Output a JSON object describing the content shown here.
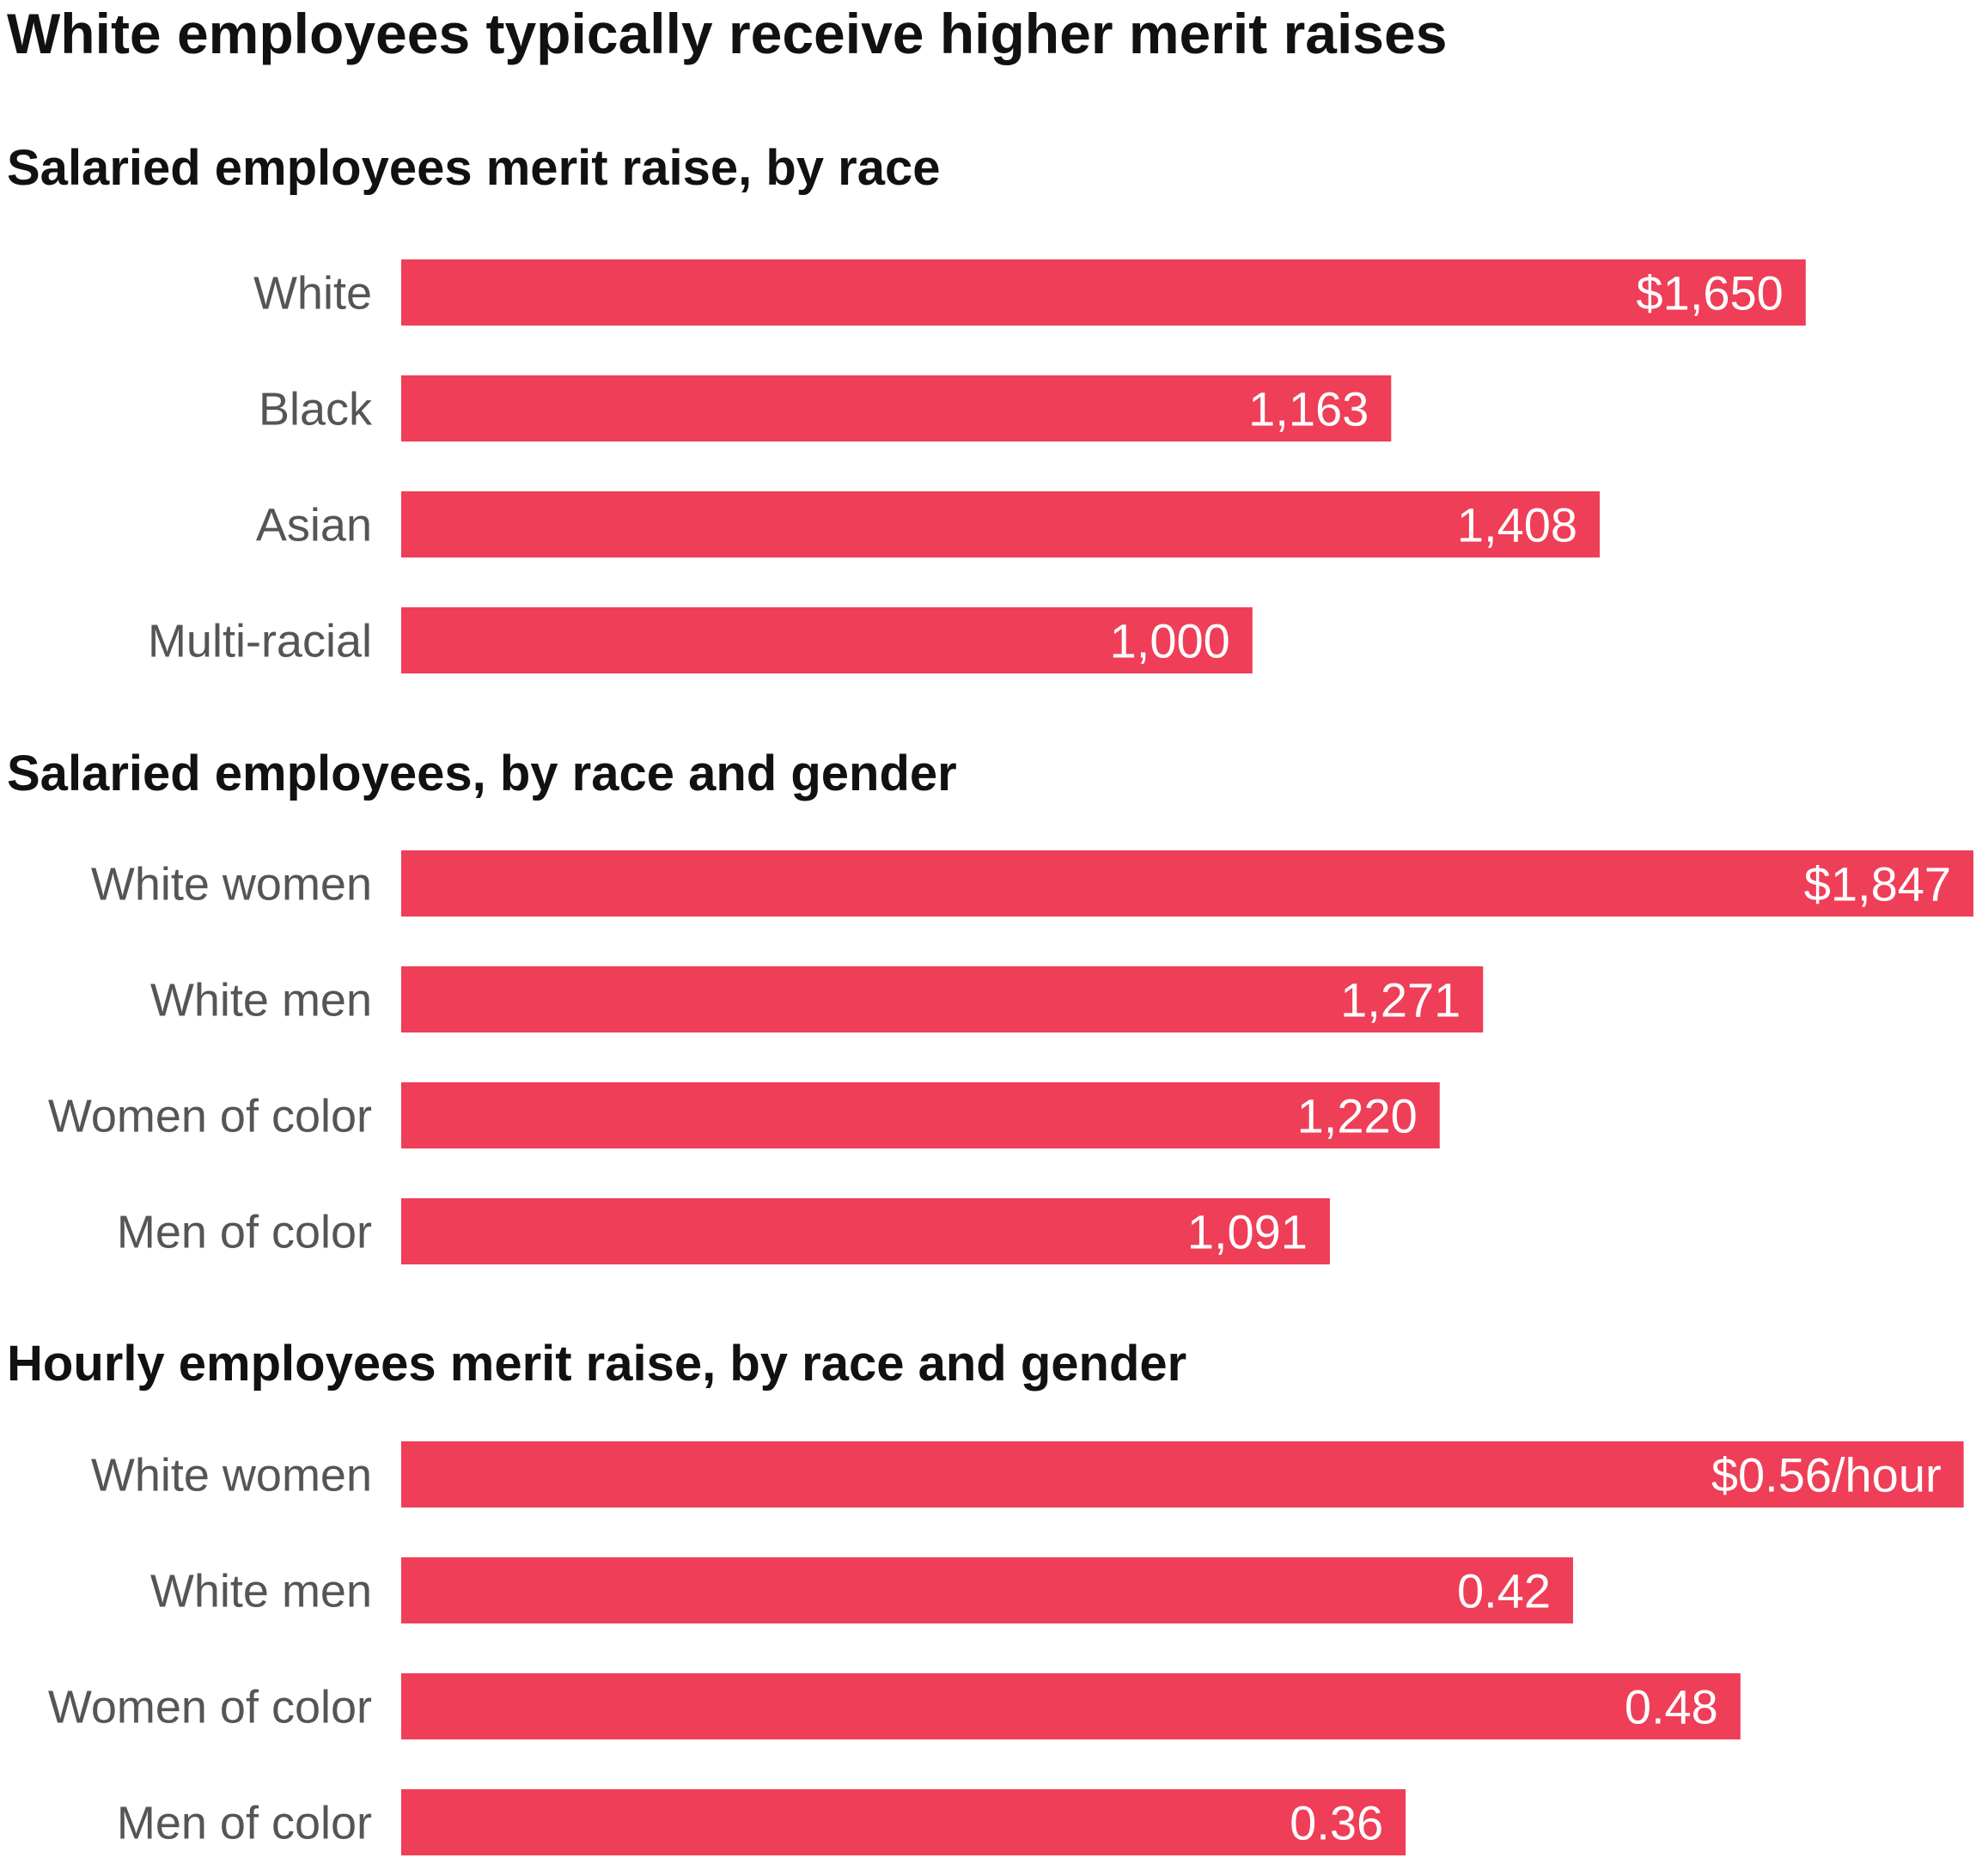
{
  "title": "White employees typically receive higher merit raises",
  "colors": {
    "bar": "#ef3e57",
    "category_text": "#555555",
    "title_text": "#111111",
    "value_text": "#ffffff"
  },
  "chart_data": [
    {
      "type": "bar",
      "orientation": "horizontal",
      "title": "Salaried employees merit raise, by race",
      "categories": [
        "White",
        "Black",
        "Asian",
        "Multi-racial"
      ],
      "values": [
        1650,
        1163,
        1408,
        1000
      ],
      "value_labels": [
        "$1,650",
        "1,163",
        "1,408",
        "1,000"
      ],
      "xlim": [
        0,
        1847
      ]
    },
    {
      "type": "bar",
      "orientation": "horizontal",
      "title": "Salaried employees, by race and gender",
      "categories": [
        "White women",
        "White men",
        "Women of color",
        "Men of color"
      ],
      "values": [
        1847,
        1271,
        1220,
        1091
      ],
      "value_labels": [
        "$1,847",
        "1,271",
        "1,220",
        "1,091"
      ],
      "xlim": [
        0,
        1847
      ]
    },
    {
      "type": "bar",
      "orientation": "horizontal",
      "title": "Hourly employees merit raise, by race and gender",
      "categories": [
        "White women",
        "White men",
        "Women of color",
        "Men of color"
      ],
      "values": [
        0.56,
        0.42,
        0.48,
        0.36
      ],
      "value_labels": [
        "$0.56/hour",
        "0.42",
        "0.48",
        "0.36"
      ],
      "xlim": [
        0,
        0.5635
      ]
    }
  ]
}
